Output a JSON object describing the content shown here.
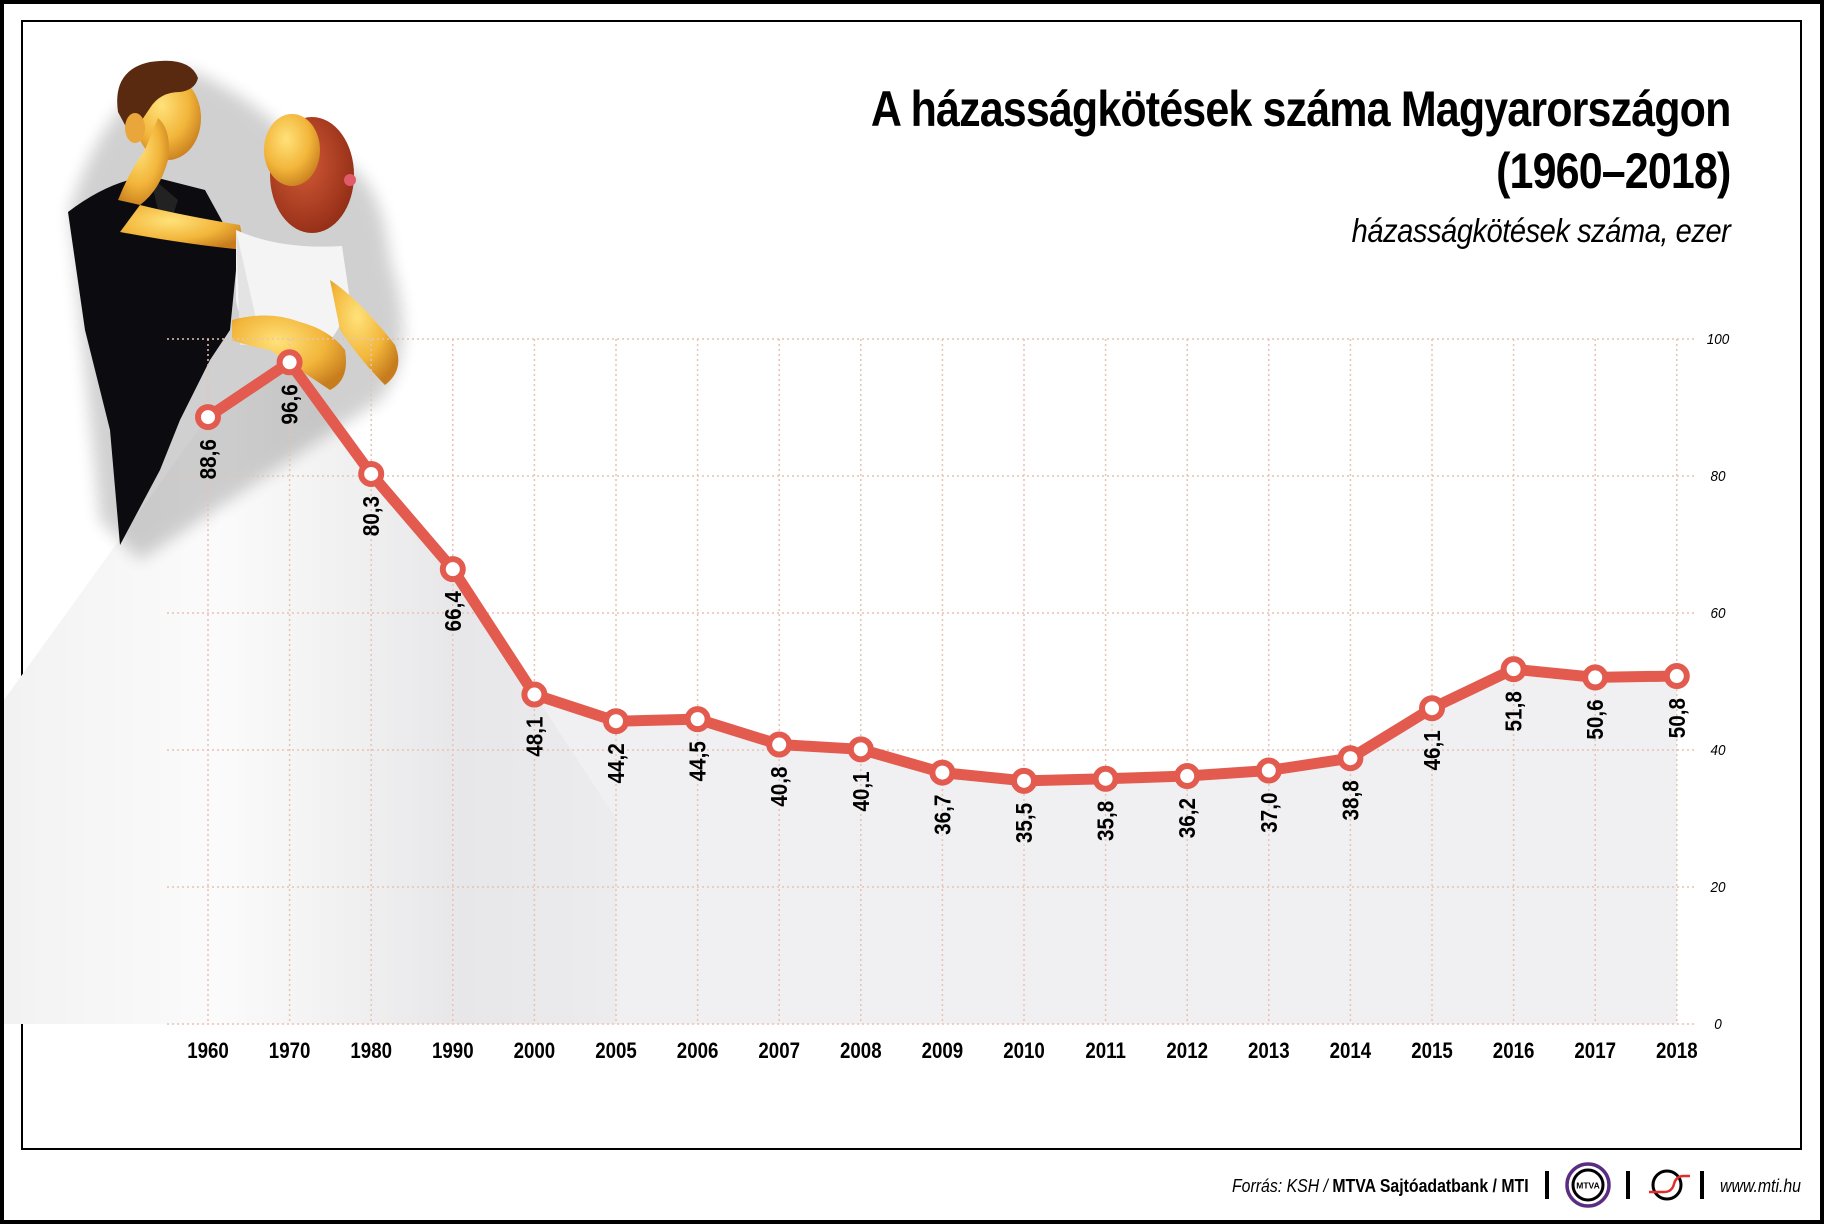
{
  "header": {
    "title_line1": "A házasságkötések száma Magyarországon",
    "title_line2": "(1960–2018)",
    "subtitle": "házasságkötések száma, ezer"
  },
  "footer": {
    "source_prefix": "Forrás: KSH / ",
    "source_bold": "MTVA Sajtóadatbank / MTI",
    "logo1_text": "MTVA",
    "logo1_icon": "mtva-logo",
    "logo2_icon": "mti-logo",
    "url": "www.mti.hu"
  },
  "colors": {
    "line": "#e35b4f",
    "marker_fill": "#ffffff",
    "grid": "#e6c3b3",
    "area": "#f0f0f2",
    "mtva_ring": "#5b2d82",
    "mti_red": "#e32b2b"
  },
  "chart_data": {
    "type": "line",
    "title": "A házasságkötések száma Magyarországon (1960–2018)",
    "subtitle": "házasságkötések száma, ezer",
    "xlabel": "",
    "ylabel": "házasságkötések száma, ezer",
    "categories": [
      "1960",
      "1970",
      "1980",
      "1990",
      "2000",
      "2005",
      "2006",
      "2007",
      "2008",
      "2009",
      "2010",
      "2011",
      "2012",
      "2013",
      "2014",
      "2015",
      "2016",
      "2017",
      "2018"
    ],
    "values": [
      88.6,
      96.6,
      80.3,
      66.4,
      48.1,
      44.2,
      44.5,
      40.8,
      40.1,
      36.7,
      35.5,
      35.8,
      36.2,
      37.0,
      38.8,
      46.1,
      51.8,
      50.6,
      50.8
    ],
    "value_labels": [
      "88,6",
      "96,6",
      "80,3",
      "66,4",
      "48,1",
      "44,2",
      "44,5",
      "40,8",
      "40,1",
      "36,7",
      "35,5",
      "35,8",
      "36,2",
      "37,0",
      "38,8",
      "46,1",
      "51,8",
      "50,6",
      "50,8"
    ],
    "label_position": [
      "below",
      "below",
      "below",
      "below",
      "below",
      "below",
      "below",
      "below",
      "below",
      "below",
      "below",
      "below",
      "below",
      "below",
      "below",
      "below",
      "below",
      "below",
      "below"
    ],
    "y_ticks": [
      0,
      20,
      40,
      60,
      80,
      100
    ],
    "y_tick_labels": [
      "0",
      "20",
      "40",
      "60",
      "80",
      "100"
    ],
    "ylim": [
      0,
      100
    ],
    "y_axis_position": "right",
    "grid": true,
    "legend": "none"
  },
  "decoration": {
    "illustration": "wedding-couple-figurine"
  }
}
